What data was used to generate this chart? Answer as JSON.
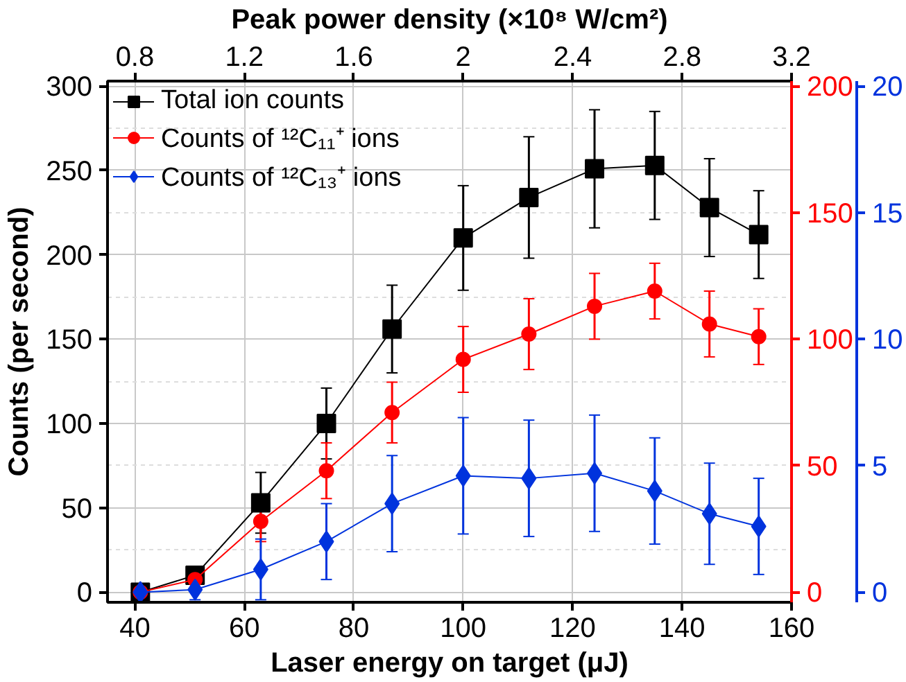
{
  "chart_data": {
    "type": "line",
    "xlabel": "Laser energy on target (μJ)",
    "ylabel": "Counts (per second)",
    "x2label": "Peak power density (×10⁸ W/cm²)",
    "x": [
      41,
      51,
      63,
      75,
      87,
      100,
      112,
      124,
      135,
      145,
      154
    ],
    "xlim": [
      35,
      160
    ],
    "xticks": [
      40,
      60,
      80,
      100,
      120,
      140,
      160
    ],
    "x2lim": [
      0.7,
      3.2
    ],
    "x2ticks": [
      0.8,
      1.2,
      1.6,
      2,
      2.4,
      2.8,
      3.2
    ],
    "ylim": [
      -6,
      303
    ],
    "yticks": [
      0,
      50,
      100,
      150,
      200,
      250,
      300
    ],
    "y2lim": [
      -4,
      202
    ],
    "y2ticks": [
      0,
      50,
      100,
      150,
      200
    ],
    "y3lim": [
      -0.4,
      20.2
    ],
    "y3ticks": [
      0,
      5,
      10,
      15,
      20
    ],
    "grid": true,
    "legend": "top left",
    "series": [
      {
        "name": "Total ion counts",
        "color": "#000000",
        "marker": "square",
        "values": [
          0,
          10,
          53,
          100,
          156,
          210,
          234,
          251,
          253,
          228,
          212
        ],
        "errors": [
          null,
          5,
          18,
          21,
          26,
          31,
          36,
          35,
          32,
          29,
          26
        ]
      },
      {
        "name": "Counts of ¹²C₁₁⁺ ions",
        "color": "#ff0000",
        "marker": "circle",
        "axis": "y2",
        "values": [
          0,
          5,
          28,
          48,
          71,
          92,
          102,
          113,
          119,
          106,
          101
        ],
        "errors": [
          null,
          3,
          8,
          11,
          12,
          13,
          14,
          13,
          11,
          13,
          11
        ]
      },
      {
        "name": "Counts of ¹²C₁₃⁺ ions",
        "color": "#0033dd",
        "marker": "diamond",
        "axis": "y3",
        "values": [
          0,
          0.1,
          0.9,
          2.0,
          3.5,
          4.6,
          4.5,
          4.7,
          4.0,
          3.1,
          2.6
        ],
        "errors": [
          null,
          0.4,
          1.2,
          1.5,
          1.9,
          2.3,
          2.3,
          2.3,
          2.1,
          2.0,
          1.9
        ]
      }
    ]
  }
}
